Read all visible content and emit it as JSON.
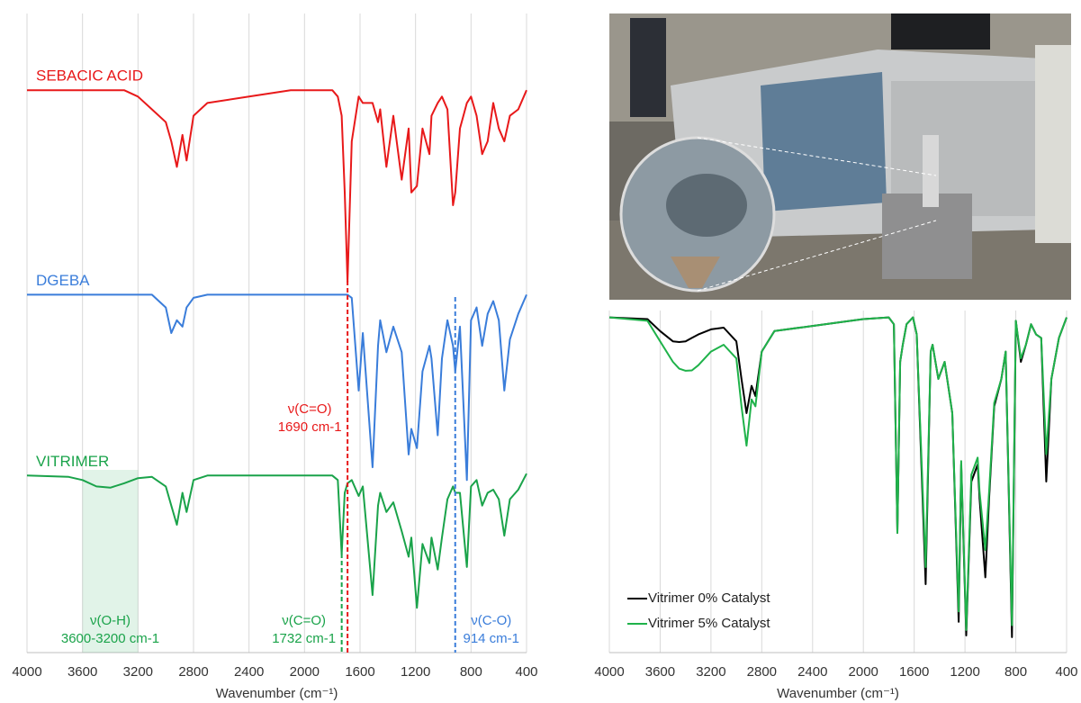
{
  "chart_data": [
    {
      "type": "line",
      "x_label": "Wavenumber (cm⁻¹)",
      "xlim": [
        4000,
        400
      ],
      "xticks": [
        4000,
        3600,
        3200,
        2800,
        2400,
        2000,
        1600,
        1200,
        800,
        400
      ],
      "ylim": [
        0,
        100
      ],
      "grid": true,
      "x": [
        4000,
        3700,
        3600,
        3500,
        3400,
        3300,
        3200,
        3100,
        3000,
        2960,
        2920,
        2880,
        2850,
        2800,
        2700,
        2400,
        2100,
        1800,
        1760,
        1732,
        1710,
        1690,
        1660,
        1610,
        1580,
        1510,
        1470,
        1455,
        1410,
        1360,
        1300,
        1250,
        1230,
        1190,
        1150,
        1100,
        1085,
        1040,
        1010,
        970,
        930,
        914,
        880,
        830,
        800,
        760,
        720,
        680,
        640,
        600,
        560,
        520,
        460,
        400
      ],
      "series": [
        {
          "name": "SEBACIC ACID",
          "color": "#e8191a",
          "values": [
            88,
            88,
            88,
            88,
            88,
            88,
            87,
            85,
            83,
            80,
            76,
            81,
            77,
            84,
            86,
            87,
            88,
            88,
            87,
            84,
            72,
            58,
            80,
            87,
            86,
            86,
            83,
            85,
            76,
            84,
            74,
            82,
            72,
            73,
            82,
            78,
            84,
            86,
            87,
            85,
            70,
            72,
            82,
            86,
            87,
            84,
            78,
            80,
            86,
            82,
            80,
            84,
            85,
            88
          ]
        },
        {
          "name": "DGEBA",
          "color": "#3a7dda",
          "values": [
            56,
            56,
            56,
            56,
            56,
            56,
            56,
            56,
            54,
            50,
            52,
            51,
            54,
            55.5,
            56,
            56,
            56,
            56,
            56,
            56,
            56,
            56,
            55.5,
            41,
            50,
            29,
            48,
            52,
            47,
            51,
            47,
            31,
            35,
            32,
            44,
            48,
            46,
            34,
            46,
            52,
            48,
            44,
            51,
            27,
            52,
            54,
            48,
            53,
            55,
            52,
            41,
            49,
            53,
            56
          ]
        },
        {
          "name": "VITRIMER",
          "color": "#1aa34a",
          "values": [
            27.7,
            27.5,
            27,
            26,
            25.8,
            26.5,
            27.3,
            27.5,
            26,
            23,
            20,
            25,
            22,
            27,
            27.7,
            27.7,
            27.7,
            27.7,
            27,
            15.4,
            25,
            26.5,
            27,
            24.5,
            26,
            9,
            23,
            25,
            22,
            23.5,
            19,
            15,
            18,
            7,
            17,
            14,
            18,
            13,
            18,
            24,
            26,
            25,
            25,
            13.4,
            26,
            27,
            23,
            25,
            25.5,
            24,
            18.3,
            24,
            25.5,
            28
          ]
        }
      ],
      "annotations": [
        {
          "text": [
            "ν(C=O)",
            "1690 cm-1"
          ],
          "x": 1690,
          "color": "#e8191a"
        },
        {
          "text": [
            "ν(C=O)",
            "1732 cm-1"
          ],
          "x": 1732,
          "color": "#1aa34a"
        },
        {
          "text": [
            "ν(C-O)",
            "914 cm-1"
          ],
          "x": 914,
          "color": "#3a7dda"
        }
      ],
      "spans": [
        {
          "text": [
            "ν(O-H)",
            "3600-3200 cm-1"
          ],
          "xrange": [
            3600,
            3200
          ],
          "color": "#1aa34a"
        }
      ]
    },
    {
      "type": "line",
      "x_label": "Wavenumber (cm⁻¹)",
      "xlim": [
        4000,
        400
      ],
      "xticks": [
        4000,
        3600,
        3200,
        2800,
        2400,
        2000,
        1600,
        1200,
        800,
        400
      ],
      "ylim": [
        0,
        100
      ],
      "grid": true,
      "legend": "lower left",
      "x": [
        4000,
        3700,
        3600,
        3500,
        3450,
        3400,
        3350,
        3300,
        3200,
        3100,
        3000,
        2960,
        2920,
        2880,
        2850,
        2800,
        2700,
        2400,
        2100,
        2000,
        1800,
        1760,
        1732,
        1710,
        1690,
        1660,
        1610,
        1580,
        1510,
        1470,
        1455,
        1410,
        1360,
        1300,
        1250,
        1230,
        1190,
        1150,
        1100,
        1085,
        1040,
        1010,
        970,
        914,
        880,
        830,
        800,
        760,
        720,
        680,
        640,
        600,
        560,
        520,
        460,
        400
      ],
      "series": [
        {
          "name": "Vitrimer 0% Catalyst",
          "color": "#000000",
          "values": [
            98,
            97.5,
            94,
            91,
            90.8,
            91,
            92,
            93,
            94.5,
            95,
            91,
            80,
            70,
            78,
            75,
            88,
            94,
            95.5,
            97,
            97.5,
            98,
            96,
            35,
            85,
            90,
            96,
            98,
            93,
            20,
            88,
            90,
            80,
            85,
            70,
            9,
            55,
            5,
            50,
            55,
            45,
            22,
            45,
            72,
            80,
            88,
            4.5,
            97,
            85,
            90,
            96,
            93,
            92,
            50,
            80,
            92,
            98
          ]
        },
        {
          "name": "Vitrimer 5% Catalyst",
          "color": "#1fb24a",
          "values": [
            98,
            97,
            91,
            85,
            83,
            82.4,
            82.5,
            84,
            88,
            90,
            86,
            72,
            60.5,
            74,
            72,
            88,
            94,
            95.5,
            97,
            97.5,
            98,
            96,
            35,
            85,
            90,
            96,
            98,
            93,
            25,
            88,
            90,
            80,
            85,
            70,
            12,
            56,
            6.6,
            52,
            57,
            47,
            30,
            47,
            73,
            80,
            88,
            8,
            97,
            86,
            90,
            96,
            93,
            92,
            58,
            80,
            92,
            98
          ]
        }
      ]
    }
  ]
}
